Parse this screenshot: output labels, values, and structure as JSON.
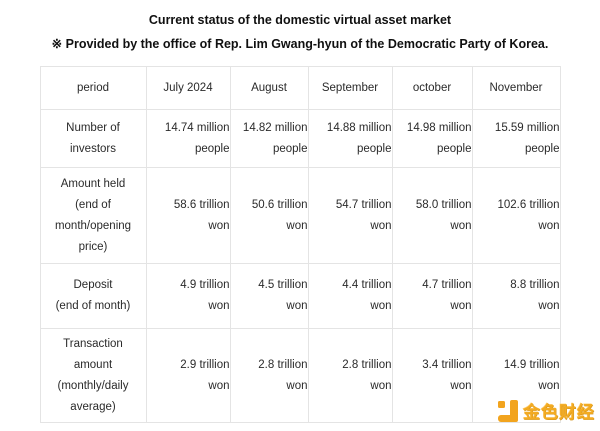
{
  "header": {
    "title": "Current status of the domestic virtual asset market",
    "subtitle": "※ Provided by the office of Rep. Lim Gwang-hyun of the Democratic Party of Korea."
  },
  "table": {
    "columns": [
      "period",
      "July 2024",
      "August",
      "September",
      "october",
      "November"
    ],
    "rows": [
      {
        "label_lines": [
          "Number of",
          "investors"
        ],
        "cells": [
          [
            "14.74 million",
            "people"
          ],
          [
            "14.82 million",
            "people"
          ],
          [
            "14.88 million",
            "people"
          ],
          [
            "14.98 million",
            "people"
          ],
          [
            "15.59 million",
            "people"
          ]
        ]
      },
      {
        "label_lines": [
          "Amount held",
          "(end of",
          "month/opening",
          "price)"
        ],
        "cells": [
          [
            "58.6 trillion",
            "won"
          ],
          [
            "50.6 trillion",
            "won"
          ],
          [
            "54.7 trillion",
            "won"
          ],
          [
            "58.0 trillion",
            "won"
          ],
          [
            "102.6 trillion",
            "won"
          ]
        ]
      },
      {
        "label_lines": [
          "Deposit",
          "(end of month)"
        ],
        "cells": [
          [
            "4.9 trillion",
            "won"
          ],
          [
            "4.5 trillion",
            "won"
          ],
          [
            "4.4 trillion",
            "won"
          ],
          [
            "4.7 trillion",
            "won"
          ],
          [
            "8.8 trillion",
            "won"
          ]
        ]
      },
      {
        "label_lines": [
          "Transaction",
          "amount",
          "(monthly/daily",
          "average)"
        ],
        "cells": [
          [
            "2.9 trillion",
            "won"
          ],
          [
            "2.8 trillion",
            "won"
          ],
          [
            "2.8 trillion",
            "won"
          ],
          [
            "3.4 trillion",
            "won"
          ],
          [
            "14.9 trillion",
            "won"
          ]
        ]
      }
    ]
  },
  "watermark": {
    "icon": "jinse-finance-logo-icon",
    "text": "金色财经",
    "accent_color": "#f2a41e"
  },
  "chart_data": {
    "type": "table",
    "title": "Current status of the domestic virtual asset market",
    "subtitle": "※ Provided by the office of Rep. Lim Gwang-hyun of the Democratic Party of Korea.",
    "columns": [
      "period",
      "July 2024",
      "August",
      "September",
      "october",
      "November"
    ],
    "rows": [
      {
        "metric": "Number of investors",
        "values": [
          "14.74 million people",
          "14.82 million people",
          "14.88 million people",
          "14.98 million people",
          "15.59 million people"
        ]
      },
      {
        "metric": "Amount held (end of month/opening price)",
        "values": [
          "58.6 trillion won",
          "50.6 trillion won",
          "54.7 trillion won",
          "58.0 trillion won",
          "102.6 trillion won"
        ]
      },
      {
        "metric": "Deposit (end of month)",
        "values": [
          "4.9 trillion won",
          "4.5 trillion won",
          "4.4 trillion won",
          "4.7 trillion won",
          "8.8 trillion won"
        ]
      },
      {
        "metric": "Transaction amount (monthly/daily average)",
        "values": [
          "2.9 trillion won",
          "2.8 trillion won",
          "2.8 trillion won",
          "3.4 trillion won",
          "14.9 trillion won"
        ]
      }
    ]
  }
}
